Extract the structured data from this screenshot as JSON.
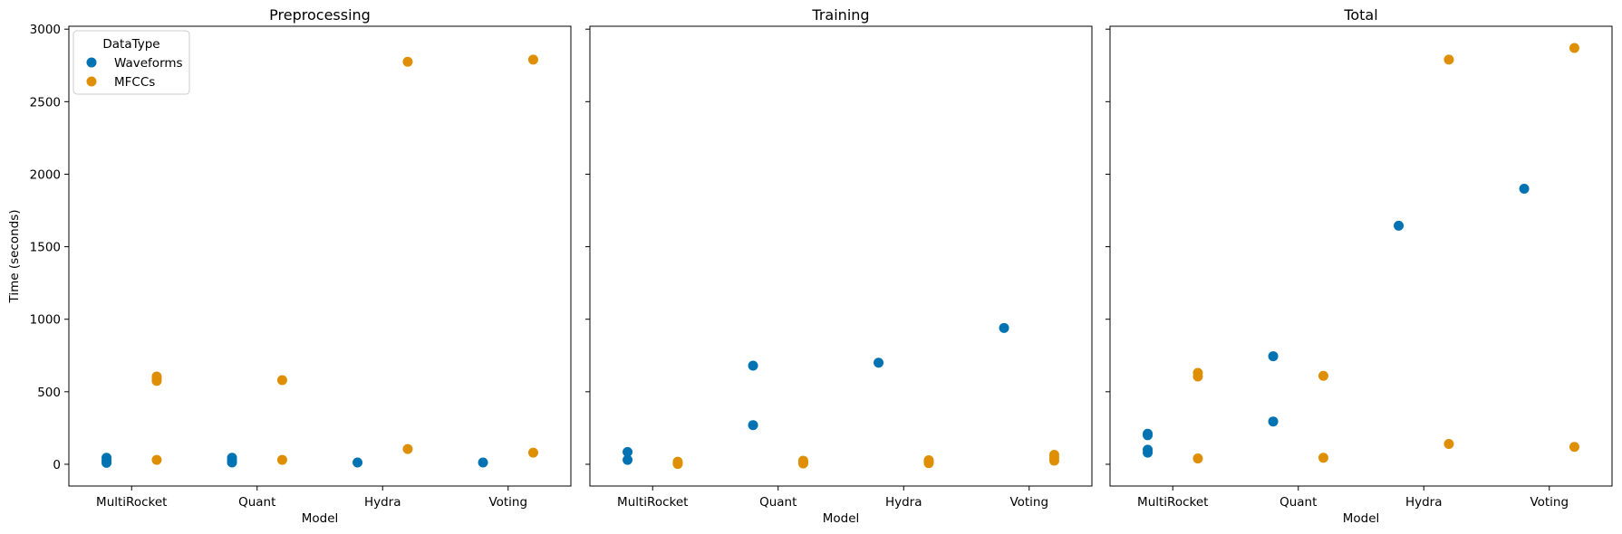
{
  "colors": {
    "Waveforms": "#0173b2",
    "MFCCs": "#de8f05"
  },
  "legend": {
    "title": "DataType",
    "location": "upper-left of first panel"
  },
  "chart_data": [
    {
      "type": "scatter",
      "title": "Preprocessing",
      "xlabel": "Model",
      "ylabel": "Time (seconds)",
      "categories": [
        "MultiRocket",
        "Quant",
        "Hydra",
        "Voting"
      ],
      "ylim": [
        -150,
        3020
      ],
      "yticks": [
        0,
        500,
        1000,
        1500,
        2000,
        2500,
        3000
      ],
      "series": [
        {
          "name": "Waveforms",
          "points": [
            {
              "category": "MultiRocket",
              "values": [
                10,
                25,
                45
              ]
            },
            {
              "category": "Quant",
              "values": [
                12,
                28,
                45
              ]
            },
            {
              "category": "Hydra",
              "values": [
                12
              ]
            },
            {
              "category": "Voting",
              "values": [
                12
              ]
            }
          ]
        },
        {
          "name": "MFCCs",
          "points": [
            {
              "category": "MultiRocket",
              "values": [
                30,
                575,
                590,
                605
              ]
            },
            {
              "category": "Quant",
              "values": [
                30,
                580
              ]
            },
            {
              "category": "Hydra",
              "values": [
                105,
                2775
              ]
            },
            {
              "category": "Voting",
              "values": [
                80,
                2790
              ]
            }
          ]
        }
      ]
    },
    {
      "type": "scatter",
      "title": "Training",
      "xlabel": "Model",
      "ylabel": "",
      "categories": [
        "MultiRocket",
        "Quant",
        "Hydra",
        "Voting"
      ],
      "ylim": [
        -150,
        3020
      ],
      "series": [
        {
          "name": "Waveforms",
          "points": [
            {
              "category": "MultiRocket",
              "values": [
                30,
                85
              ]
            },
            {
              "category": "Quant",
              "values": [
                270,
                680
              ]
            },
            {
              "category": "Hydra",
              "values": [
                700
              ]
            },
            {
              "category": "Voting",
              "values": [
                940
              ]
            }
          ]
        },
        {
          "name": "MFCCs",
          "points": [
            {
              "category": "MultiRocket",
              "values": [
                2,
                10,
                18
              ]
            },
            {
              "category": "Quant",
              "values": [
                5,
                15,
                25
              ]
            },
            {
              "category": "Hydra",
              "values": [
                8,
                18,
                28
              ]
            },
            {
              "category": "Voting",
              "values": [
                25,
                45,
                65
              ]
            }
          ]
        }
      ]
    },
    {
      "type": "scatter",
      "title": "Total",
      "xlabel": "Model",
      "ylabel": "",
      "categories": [
        "MultiRocket",
        "Quant",
        "Hydra",
        "Voting"
      ],
      "ylim": [
        -150,
        3020
      ],
      "series": [
        {
          "name": "Waveforms",
          "points": [
            {
              "category": "MultiRocket",
              "values": [
                80,
                100,
                200,
                210
              ]
            },
            {
              "category": "Quant",
              "values": [
                295,
                745
              ]
            },
            {
              "category": "Hydra",
              "values": [
                1645
              ]
            },
            {
              "category": "Voting",
              "values": [
                1900
              ]
            }
          ]
        },
        {
          "name": "MFCCs",
          "points": [
            {
              "category": "MultiRocket",
              "values": [
                40,
                605,
                630
              ]
            },
            {
              "category": "Quant",
              "values": [
                45,
                610
              ]
            },
            {
              "category": "Hydra",
              "values": [
                140,
                2790
              ]
            },
            {
              "category": "Voting",
              "values": [
                120,
                2870
              ]
            }
          ]
        }
      ]
    }
  ]
}
